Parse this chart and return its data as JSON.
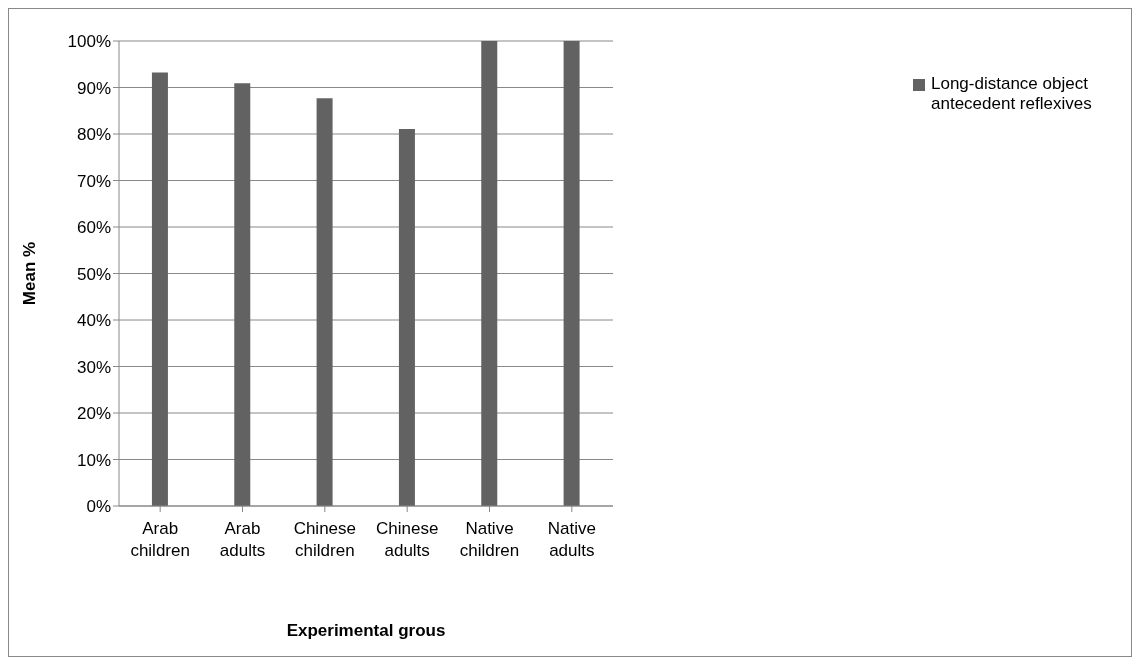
{
  "chart_data": {
    "type": "bar",
    "xlabel": "Experimental grous",
    "ylabel": "Mean %",
    "categories": [
      "Arab children",
      "Arab adults",
      "Chinese children",
      "Chinese adults",
      "Native children",
      "Native adults"
    ],
    "series": [
      {
        "name": "Long-distance object antecedent reflexives",
        "color": "#626262",
        "values": [
          93.2,
          90.9,
          87.7,
          81.1,
          100,
          100
        ]
      }
    ],
    "ylim": [
      0,
      100
    ],
    "yticks": [
      {
        "value": 0,
        "label": "0%"
      },
      {
        "value": 10,
        "label": "10%"
      },
      {
        "value": 20,
        "label": "20%"
      },
      {
        "value": 30,
        "label": "30%"
      },
      {
        "value": 40,
        "label": "40%"
      },
      {
        "value": 50,
        "label": "50%"
      },
      {
        "value": 60,
        "label": "60%"
      },
      {
        "value": 70,
        "label": "70%"
      },
      {
        "value": 80,
        "label": "80%"
      },
      {
        "value": 90,
        "label": "90%"
      },
      {
        "value": 100,
        "label": "100%"
      }
    ],
    "grid": "y",
    "legend": "right"
  }
}
